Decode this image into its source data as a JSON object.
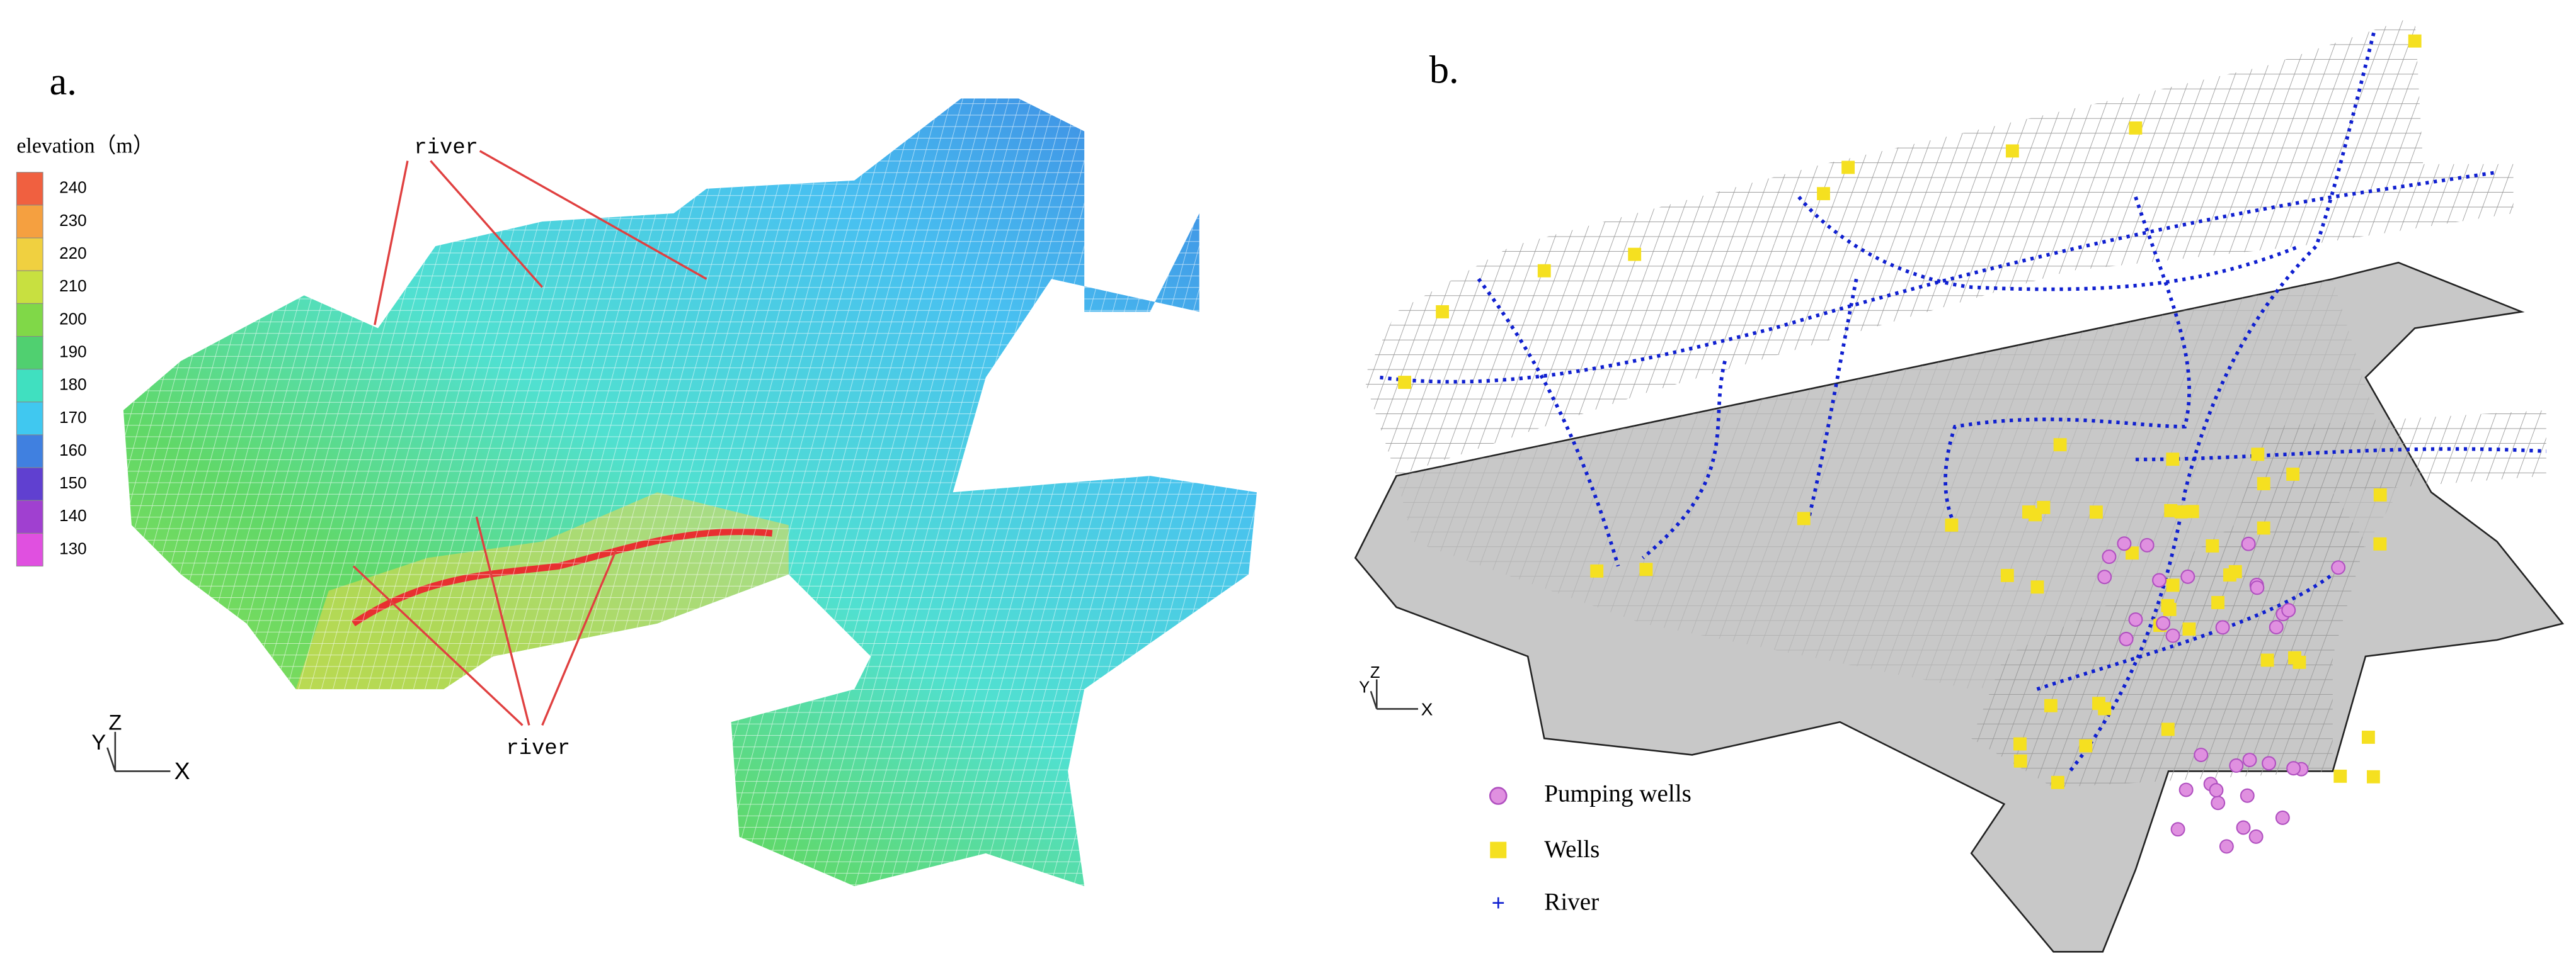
{
  "panel_a": {
    "label": "a.",
    "legend_title": "elevation（m）",
    "legend_ticks": [
      240,
      230,
      220,
      210,
      200,
      190,
      180,
      170,
      160,
      150,
      140,
      130
    ],
    "annotations": [
      "river",
      "river"
    ],
    "axis_labels": [
      "Z",
      "Y",
      "X"
    ]
  },
  "panel_b": {
    "label": "b.",
    "legend": [
      "Pumping wells",
      "Wells",
      "River"
    ],
    "axis_labels": [
      "Z",
      "Y",
      "X"
    ]
  }
}
